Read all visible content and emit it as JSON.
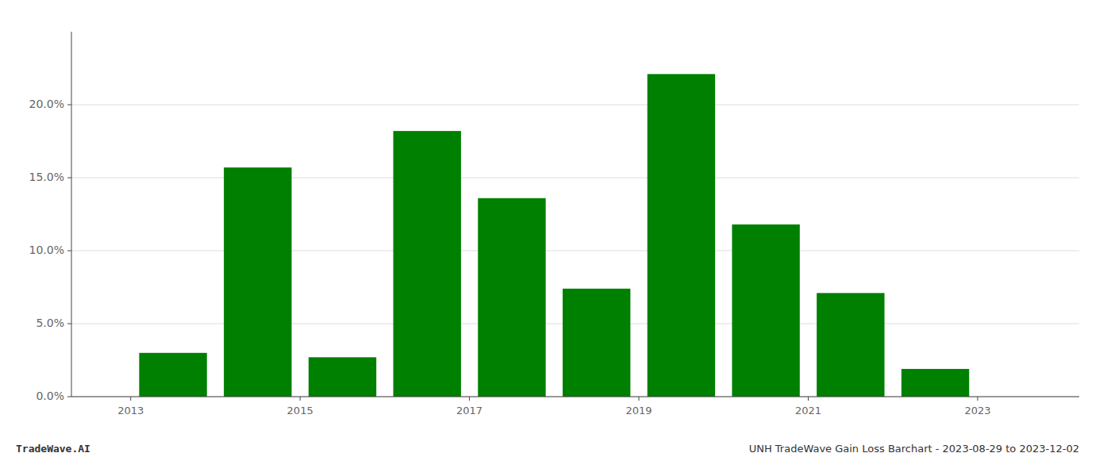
{
  "chart_data": {
    "type": "bar",
    "x": [
      2013.5,
      2014.5,
      2015.5,
      2016.5,
      2017.5,
      2018.5,
      2019.5,
      2020.5,
      2021.5,
      2022.5
    ],
    "values": [
      0.03,
      0.157,
      0.027,
      0.182,
      0.136,
      0.074,
      0.221,
      0.118,
      0.071,
      0.019
    ],
    "color": "#008000",
    "xlim": [
      2012.3,
      2024.2
    ],
    "xticks": [
      2013,
      2015,
      2017,
      2019,
      2021,
      2023
    ],
    "ylim": [
      0,
      0.25
    ],
    "yticks": [
      {
        "value": 0.0,
        "label": "0.0%"
      },
      {
        "value": 0.05,
        "label": "5.0%"
      },
      {
        "value": 0.1,
        "label": "10.0%"
      },
      {
        "value": 0.15,
        "label": "15.0%"
      },
      {
        "value": 0.2,
        "label": "20.0%"
      }
    ],
    "grid": true,
    "annotations": [
      "TradeWave.AI",
      "UNH TradeWave Gain Loss Barchart - 2023-08-29 to 2023-12-02"
    ]
  }
}
